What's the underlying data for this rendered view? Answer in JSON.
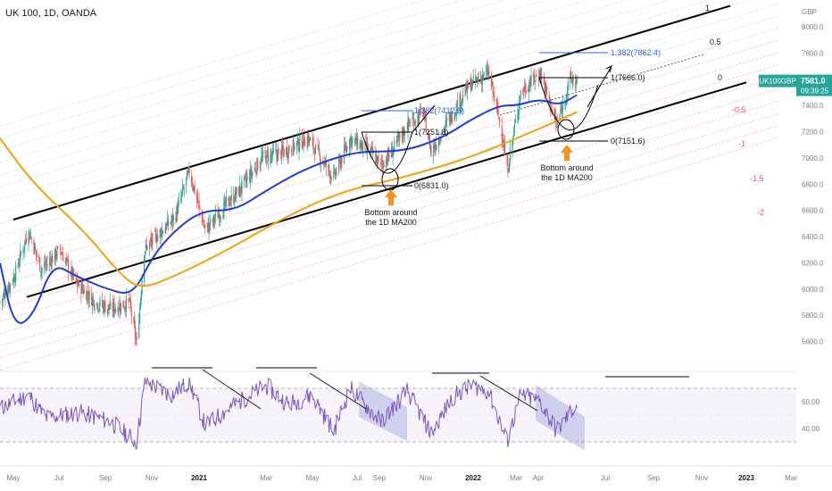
{
  "header": {
    "symbol_title": "UK 100, 1D, OANDA"
  },
  "price_axis": {
    "currency": "GBP",
    "tick_labels": [
      "8000.0",
      "7800.0",
      "7600.0",
      "7400.0",
      "7200.0",
      "7000.0",
      "6800.0",
      "6600.0",
      "6400.0",
      "6200.0",
      "6000.0",
      "5800.0",
      "5600.0"
    ]
  },
  "rsi_axis": {
    "tick_labels": [
      "60.00",
      "40.00"
    ]
  },
  "time_axis": {
    "tick_labels": [
      "May",
      "Jul",
      "Sep",
      "Nov",
      "2021",
      "Mar",
      "May",
      "Jul",
      "Sep",
      "Nov",
      "2022",
      "Mar",
      "Apr",
      "Jul",
      "Sep",
      "Nov",
      "2023",
      "Mar"
    ]
  },
  "last_price": {
    "symbol": "UK100GBP",
    "value": "7581.0",
    "countdown": "09:39:25",
    "color": "#26a69a"
  },
  "annotations": {
    "fib_left_ext": "1.382(7412.6)",
    "fib_left_top": "1(7251.8)",
    "fib_left_zero": "0(6831.0)",
    "fib_right_ext": "1.382(7862.4)",
    "fib_right_top": "1(7666.0)",
    "fib_right_zero": "0(7151.6)",
    "callout_left": [
      "Bottom around",
      "the 1D MA200"
    ],
    "callout_right": [
      "Bottom around",
      "the 1D MA200"
    ],
    "channel_levels": [
      "1",
      "0.5",
      "0",
      "-0.5",
      "-1",
      "-1.5",
      "-2"
    ]
  },
  "colors": {
    "ma50": "#1e3fd4",
    "ma200": "#f0a30a",
    "rsi": "#7e57c2",
    "fib_blue": "#2962ff",
    "arrow_orange": "#f7931a",
    "candle_up": "#26a69a",
    "candle_down": "#ef5350"
  },
  "chart_data": {
    "type": "candlestick",
    "title": "UK 100, 1D, OANDA",
    "y_unit": "GBP",
    "ylim": [
      5400,
      8150
    ],
    "x_range": [
      "2020-05-01",
      "2023-03-15"
    ],
    "close_path": [
      [
        "2020-05-01",
        5900
      ],
      [
        "2020-05-20",
        6100
      ],
      [
        "2020-06-08",
        6450
      ],
      [
        "2020-06-25",
        6150
      ],
      [
        "2020-07-20",
        6300
      ],
      [
        "2020-08-10",
        6050
      ],
      [
        "2020-09-05",
        5900
      ],
      [
        "2020-09-25",
        5850
      ],
      [
        "2020-10-20",
        5900
      ],
      [
        "2020-10-30",
        5580
      ],
      [
        "2020-11-09",
        6300
      ],
      [
        "2020-11-25",
        6400
      ],
      [
        "2020-12-20",
        6550
      ],
      [
        "2021-01-08",
        6900
      ],
      [
        "2021-01-29",
        6450
      ],
      [
        "2021-02-20",
        6600
      ],
      [
        "2021-03-15",
        6750
      ],
      [
        "2021-04-15",
        7000
      ],
      [
        "2021-05-15",
        7050
      ],
      [
        "2021-06-15",
        7150
      ],
      [
        "2021-07-19",
        6850
      ],
      [
        "2021-08-10",
        7150
      ],
      [
        "2021-09-05",
        7050
      ],
      [
        "2021-09-20",
        6950
      ],
      [
        "2021-10-05",
        7050
      ],
      [
        "2021-10-25",
        7250
      ],
      [
        "2021-11-15",
        7350
      ],
      [
        "2021-11-26",
        7050
      ],
      [
        "2021-12-20",
        7300
      ],
      [
        "2022-01-15",
        7550
      ],
      [
        "2022-02-10",
        7650
      ],
      [
        "2022-02-28",
        7200
      ],
      [
        "2022-03-07",
        6900
      ],
      [
        "2022-03-25",
        7500
      ],
      [
        "2022-04-20",
        7650
      ],
      [
        "2022-05-12",
        7250
      ],
      [
        "2022-05-30",
        7600
      ],
      [
        "2022-06-08",
        7581
      ]
    ],
    "last_close": 7581.0,
    "series": [
      {
        "name": "",
        "type": "moving_average",
        "role": "MA50",
        "points": [
          [
            "2020-05-01",
            6200
          ],
          [
            "2020-05-20",
            5700
          ],
          [
            "2020-06-15",
            5800
          ],
          [
            "2020-07-10",
            6200
          ],
          [
            "2020-08-10",
            6100
          ],
          [
            "2020-09-20",
            6000
          ],
          [
            "2020-10-25",
            5950
          ],
          [
            "2020-11-20",
            6250
          ],
          [
            "2020-12-20",
            6450
          ],
          [
            "2021-01-25",
            6600
          ],
          [
            "2021-03-10",
            6600
          ],
          [
            "2021-04-20",
            6750
          ],
          [
            "2021-06-05",
            6900
          ],
          [
            "2021-07-20",
            7000
          ],
          [
            "2021-08-25",
            7050
          ],
          [
            "2021-10-20",
            7050
          ],
          [
            "2021-12-10",
            7150
          ],
          [
            "2022-01-20",
            7300
          ],
          [
            "2022-02-25",
            7400
          ],
          [
            "2022-03-20",
            7400
          ],
          [
            "2022-04-20",
            7450
          ],
          [
            "2022-05-15",
            7400
          ],
          [
            "2022-06-08",
            7480
          ]
        ]
      },
      {
        "name": "",
        "type": "moving_average",
        "role": "MA200",
        "points": [
          [
            "2020-05-01",
            7150
          ],
          [
            "2020-06-15",
            6800
          ],
          [
            "2020-08-20",
            6450
          ],
          [
            "2020-10-10",
            6100
          ],
          [
            "2020-11-05",
            6000
          ],
          [
            "2020-12-20",
            6100
          ],
          [
            "2021-03-01",
            6300
          ],
          [
            "2021-05-15",
            6550
          ],
          [
            "2021-08-01",
            6750
          ],
          [
            "2021-10-20",
            6850
          ],
          [
            "2022-01-15",
            7000
          ],
          [
            "2022-03-20",
            7150
          ],
          [
            "2022-05-20",
            7300
          ],
          [
            "2022-06-08",
            7350
          ]
        ]
      }
    ],
    "rsi": {
      "ylim": [
        20,
        80
      ],
      "levels": [
        70,
        30
      ],
      "points": [
        [
          "2020-05-01",
          55
        ],
        [
          "2020-06-08",
          65
        ],
        [
          "2020-07-01",
          48
        ],
        [
          "2020-08-15",
          52
        ],
        [
          "2020-09-25",
          45
        ],
        [
          "2020-10-30",
          30
        ],
        [
          "2020-11-10",
          75
        ],
        [
          "2020-12-15",
          65
        ],
        [
          "2021-01-08",
          75
        ],
        [
          "2021-01-29",
          42
        ],
        [
          "2021-03-10",
          58
        ],
        [
          "2021-04-20",
          72
        ],
        [
          "2021-05-20",
          58
        ],
        [
          "2021-06-20",
          65
        ],
        [
          "2021-07-19",
          38
        ],
        [
          "2021-08-10",
          70
        ],
        [
          "2021-09-20",
          45
        ],
        [
          "2021-10-25",
          68
        ],
        [
          "2021-11-26",
          36
        ],
        [
          "2021-12-25",
          64
        ],
        [
          "2022-01-20",
          72
        ],
        [
          "2022-02-10",
          68
        ],
        [
          "2022-03-07",
          30
        ],
        [
          "2022-03-25",
          65
        ],
        [
          "2022-04-20",
          60
        ],
        [
          "2022-05-12",
          38
        ],
        [
          "2022-05-30",
          52
        ],
        [
          "2022-06-08",
          58
        ]
      ]
    }
  }
}
